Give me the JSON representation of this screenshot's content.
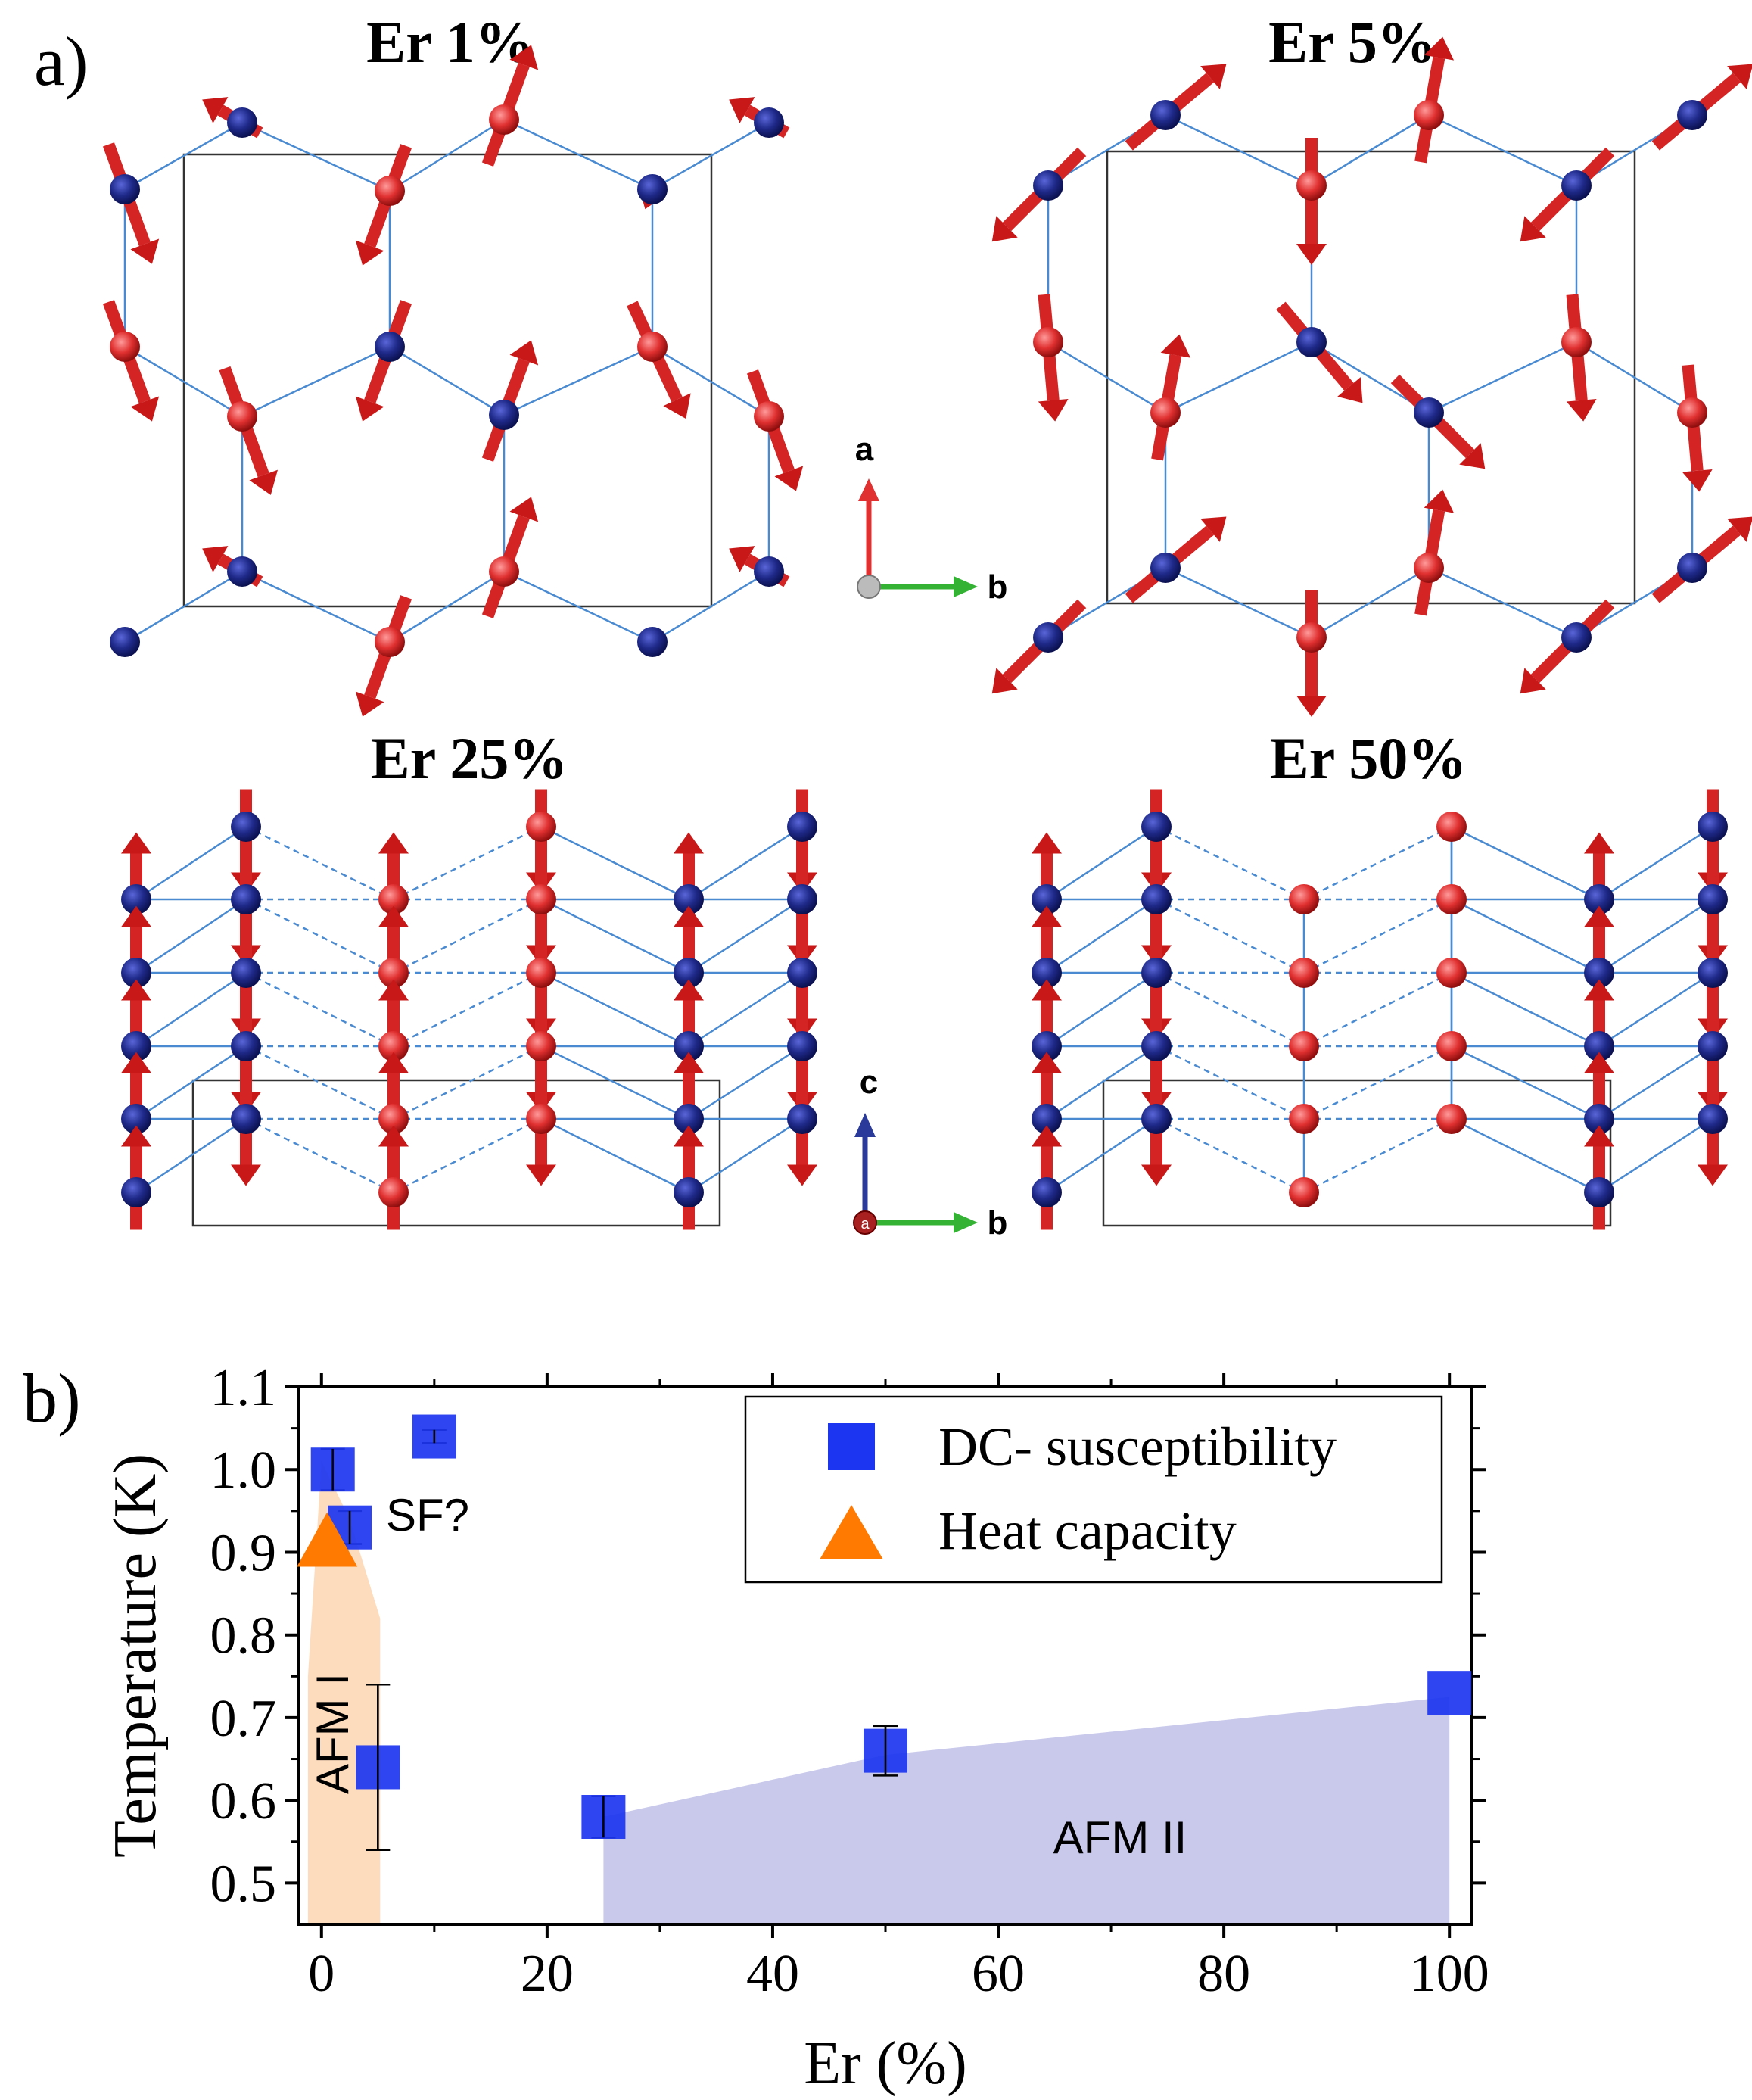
{
  "panel_a": {
    "label": "a)",
    "panels": [
      {
        "title": "Er 1%"
      },
      {
        "title": "Er 5%"
      },
      {
        "title": "Er 25%"
      },
      {
        "title": "Er 50%"
      }
    ],
    "axes_top": {
      "vertical": "a",
      "horizontal": "b"
    },
    "axes_bottom": {
      "vertical": "c",
      "horizontal": "b",
      "origin": "a"
    },
    "colors": {
      "atom_blue": "#1f2a8a",
      "atom_red": "#e03030",
      "arrow_red": "#d82020",
      "bond": "#4a8ad0",
      "axis_green": "#33b233",
      "axis_blue": "#2a3a9a"
    }
  },
  "panel_b": {
    "label": "b)",
    "legend": {
      "dc": "DC- susceptibility",
      "hc": "Heat capacity"
    },
    "region_labels": {
      "afm1": "AFM I",
      "afm2": "AFM II",
      "sf": "SF?"
    },
    "colors": {
      "dc": "#1c35f0",
      "hc": "#ff7a00",
      "afm1_fill": "#fddcbd",
      "afm2_fill": "#c9c9ec"
    }
  },
  "chart_data": {
    "type": "scatter",
    "xlabel": "Er (%)",
    "ylabel": "Temperature (K)",
    "xlim": [
      -2,
      102
    ],
    "ylim": [
      0.45,
      1.1
    ],
    "xticks": [
      0,
      20,
      40,
      60,
      80,
      100
    ],
    "yticks": [
      0.5,
      0.6,
      0.7,
      0.8,
      0.9,
      1.0,
      1.1
    ],
    "xtick_labels": [
      "0",
      "20",
      "40",
      "60",
      "80",
      "100"
    ],
    "ytick_labels": [
      "0.5",
      "0.6",
      "0.7",
      "0.8",
      "0.9",
      "1.0",
      "1.1"
    ],
    "legend_position": "top-right",
    "series": [
      {
        "name": "DC- susceptibility",
        "marker": "square",
        "points": [
          {
            "x": 1,
            "y": 1.0,
            "err": 0.025
          },
          {
            "x": 2.5,
            "y": 0.93,
            "err": 0.02
          },
          {
            "x": 5,
            "y": 0.64,
            "err": 0.1
          },
          {
            "x": 10,
            "y": 1.04,
            "err": 0.008
          },
          {
            "x": 25,
            "y": 0.58,
            "err": 0.025
          },
          {
            "x": 50,
            "y": 0.66,
            "err": 0.03
          },
          {
            "x": 100,
            "y": 0.73,
            "err": 0.0
          }
        ]
      },
      {
        "name": "Heat capacity",
        "marker": "triangle",
        "points": [
          {
            "x": 0.5,
            "y": 0.91
          }
        ]
      }
    ],
    "regions": [
      {
        "label": "AFM I",
        "polygon": [
          [
            -1.2,
            0.45
          ],
          [
            -1.2,
            0.75
          ],
          [
            0,
            1.01
          ],
          [
            2.5,
            0.94
          ],
          [
            5.2,
            0.82
          ],
          [
            5.2,
            0.45
          ]
        ]
      },
      {
        "label": "AFM II",
        "polygon": [
          [
            25,
            0.45
          ],
          [
            25,
            0.58
          ],
          [
            50,
            0.655
          ],
          [
            100,
            0.725
          ],
          [
            100,
            0.45
          ]
        ]
      }
    ]
  }
}
